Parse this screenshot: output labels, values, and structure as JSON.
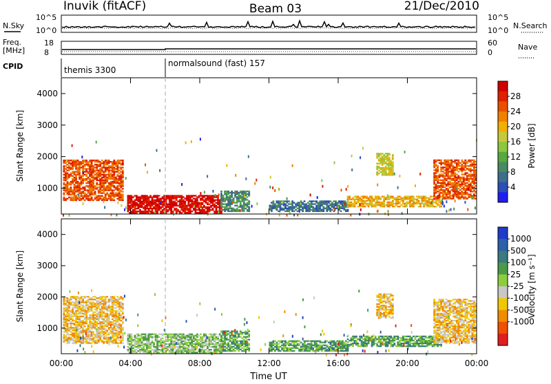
{
  "header": {
    "station": "Inuvik (fitACF)",
    "beam": "Beam 03",
    "date": "21/Dec/2010"
  },
  "summary": {
    "nsky_label": "N.Sky",
    "nsky_ticks": [
      "10^5",
      "10^0"
    ],
    "nsearch_label": "N.Search",
    "freq_label_1": "Freq.",
    "freq_label_2": "[MHz]",
    "freq_ticks": [
      "18",
      "8"
    ],
    "nave_label": "Nave",
    "nave_ticks": [
      "60",
      "0"
    ],
    "cpid_label": "CPID",
    "cpid_1": "themis 3300",
    "cpid_2": "normalsound (fast) 157"
  },
  "chart_data": [
    {
      "type": "heatmap",
      "title": "",
      "xlabel": "",
      "ylabel": "Slant Range [km]",
      "x_ticks": [
        "00:00",
        "04:00",
        "08:00",
        "12:00",
        "16:00",
        "20:00",
        "00:00"
      ],
      "y_ticks": [
        1000,
        2000,
        3000,
        4000
      ],
      "ylim": [
        180,
        4500
      ],
      "xlim_hours": [
        0,
        24
      ],
      "colorbar": {
        "label": "Power [dB]",
        "ticks": [
          4,
          8,
          12,
          16,
          20,
          24,
          28
        ],
        "range": [
          0,
          32
        ],
        "colors": [
          "#1e1ef0",
          "#2a4fb5",
          "#3f6e8a",
          "#4a8a60",
          "#57a843",
          "#8dc63f",
          "#c8c83a",
          "#f0b000",
          "#f08000",
          "#e85000",
          "#e02000",
          "#d00000"
        ]
      },
      "regions": [
        {
          "t": [
            0.1,
            3.6
          ],
          "r": [
            600,
            1900
          ],
          "power_db": 24
        },
        {
          "t": [
            3.8,
            9.2
          ],
          "r": [
            200,
            780
          ],
          "power_db": 30
        },
        {
          "t": [
            9.2,
            10.8
          ],
          "r": [
            250,
            900
          ],
          "power_db": 10
        },
        {
          "t": [
            12.0,
            16.5
          ],
          "r": [
            250,
            600
          ],
          "power_db": 6
        },
        {
          "t": [
            16.5,
            22.0
          ],
          "r": [
            400,
            750
          ],
          "power_db": 20
        },
        {
          "t": [
            18.2,
            19.2
          ],
          "r": [
            1400,
            2100
          ],
          "power_db": 18
        },
        {
          "t": [
            21.5,
            24.0
          ],
          "r": [
            650,
            1900
          ],
          "power_db": 24
        }
      ]
    },
    {
      "type": "heatmap",
      "title": "",
      "xlabel": "Time UT",
      "ylabel": "Slant Range [km]",
      "x_ticks": [
        "00:00",
        "04:00",
        "08:00",
        "12:00",
        "16:00",
        "20:00",
        "00:00"
      ],
      "y_ticks": [
        1000,
        2000,
        3000,
        4000
      ],
      "ylim": [
        180,
        4500
      ],
      "xlim_hours": [
        0,
        24
      ],
      "colorbar": {
        "label": "Velocity [m s⁻¹]",
        "ticks": [
          1000,
          500,
          100,
          25,
          -25,
          -100,
          -500,
          -1000
        ],
        "colors": [
          "#1e3cc8",
          "#2d5faa",
          "#3a7a80",
          "#4a9a4a",
          "#8ccd3c",
          "#c8c8c8",
          "#f0c800",
          "#f08c00",
          "#f05000",
          "#e01e1e"
        ]
      },
      "regions": [
        {
          "t": [
            0.1,
            3.6
          ],
          "r": [
            500,
            2000
          ],
          "velocity": -300
        },
        {
          "t": [
            3.8,
            9.2
          ],
          "r": [
            200,
            800
          ],
          "velocity": 0
        },
        {
          "t": [
            9.2,
            10.8
          ],
          "r": [
            250,
            900
          ],
          "velocity": 80
        },
        {
          "t": [
            12.0,
            16.5
          ],
          "r": [
            250,
            600
          ],
          "velocity": 60
        },
        {
          "t": [
            16.5,
            22.0
          ],
          "r": [
            400,
            750
          ],
          "velocity": 50
        },
        {
          "t": [
            18.2,
            19.2
          ],
          "r": [
            1300,
            2100
          ],
          "velocity": -300
        },
        {
          "t": [
            21.5,
            24.0
          ],
          "r": [
            500,
            1900
          ],
          "velocity": -300
        }
      ]
    }
  ]
}
